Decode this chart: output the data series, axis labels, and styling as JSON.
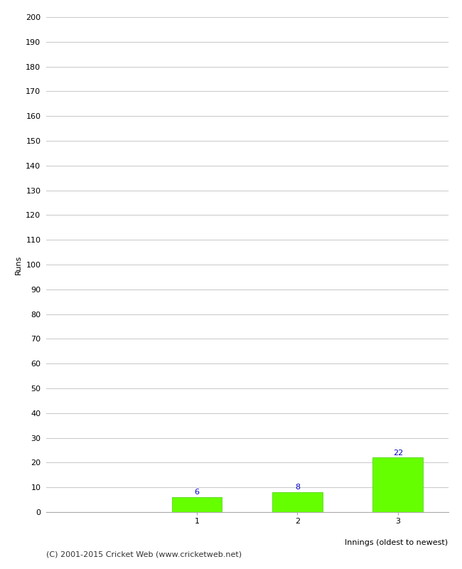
{
  "categories": [
    "1",
    "2",
    "3"
  ],
  "values": [
    6,
    8,
    22
  ],
  "bar_color": "#66ff00",
  "bar_edge_color": "#44cc00",
  "value_color": "#0000cc",
  "ylabel": "Runs",
  "xlabel": "Innings (oldest to newest)",
  "ylim": [
    0,
    200
  ],
  "yticks": [
    0,
    10,
    20,
    30,
    40,
    50,
    60,
    70,
    80,
    90,
    100,
    110,
    120,
    130,
    140,
    150,
    160,
    170,
    180,
    190,
    200
  ],
  "grid_color": "#cccccc",
  "background_color": "#ffffff",
  "footer_text": "(C) 2001-2015 Cricket Web (www.cricketweb.net)",
  "value_fontsize": 8,
  "label_fontsize": 8,
  "ylabel_fontsize": 8,
  "footer_fontsize": 8,
  "bar_width": 0.5,
  "xlim": [
    -0.5,
    3.5
  ]
}
